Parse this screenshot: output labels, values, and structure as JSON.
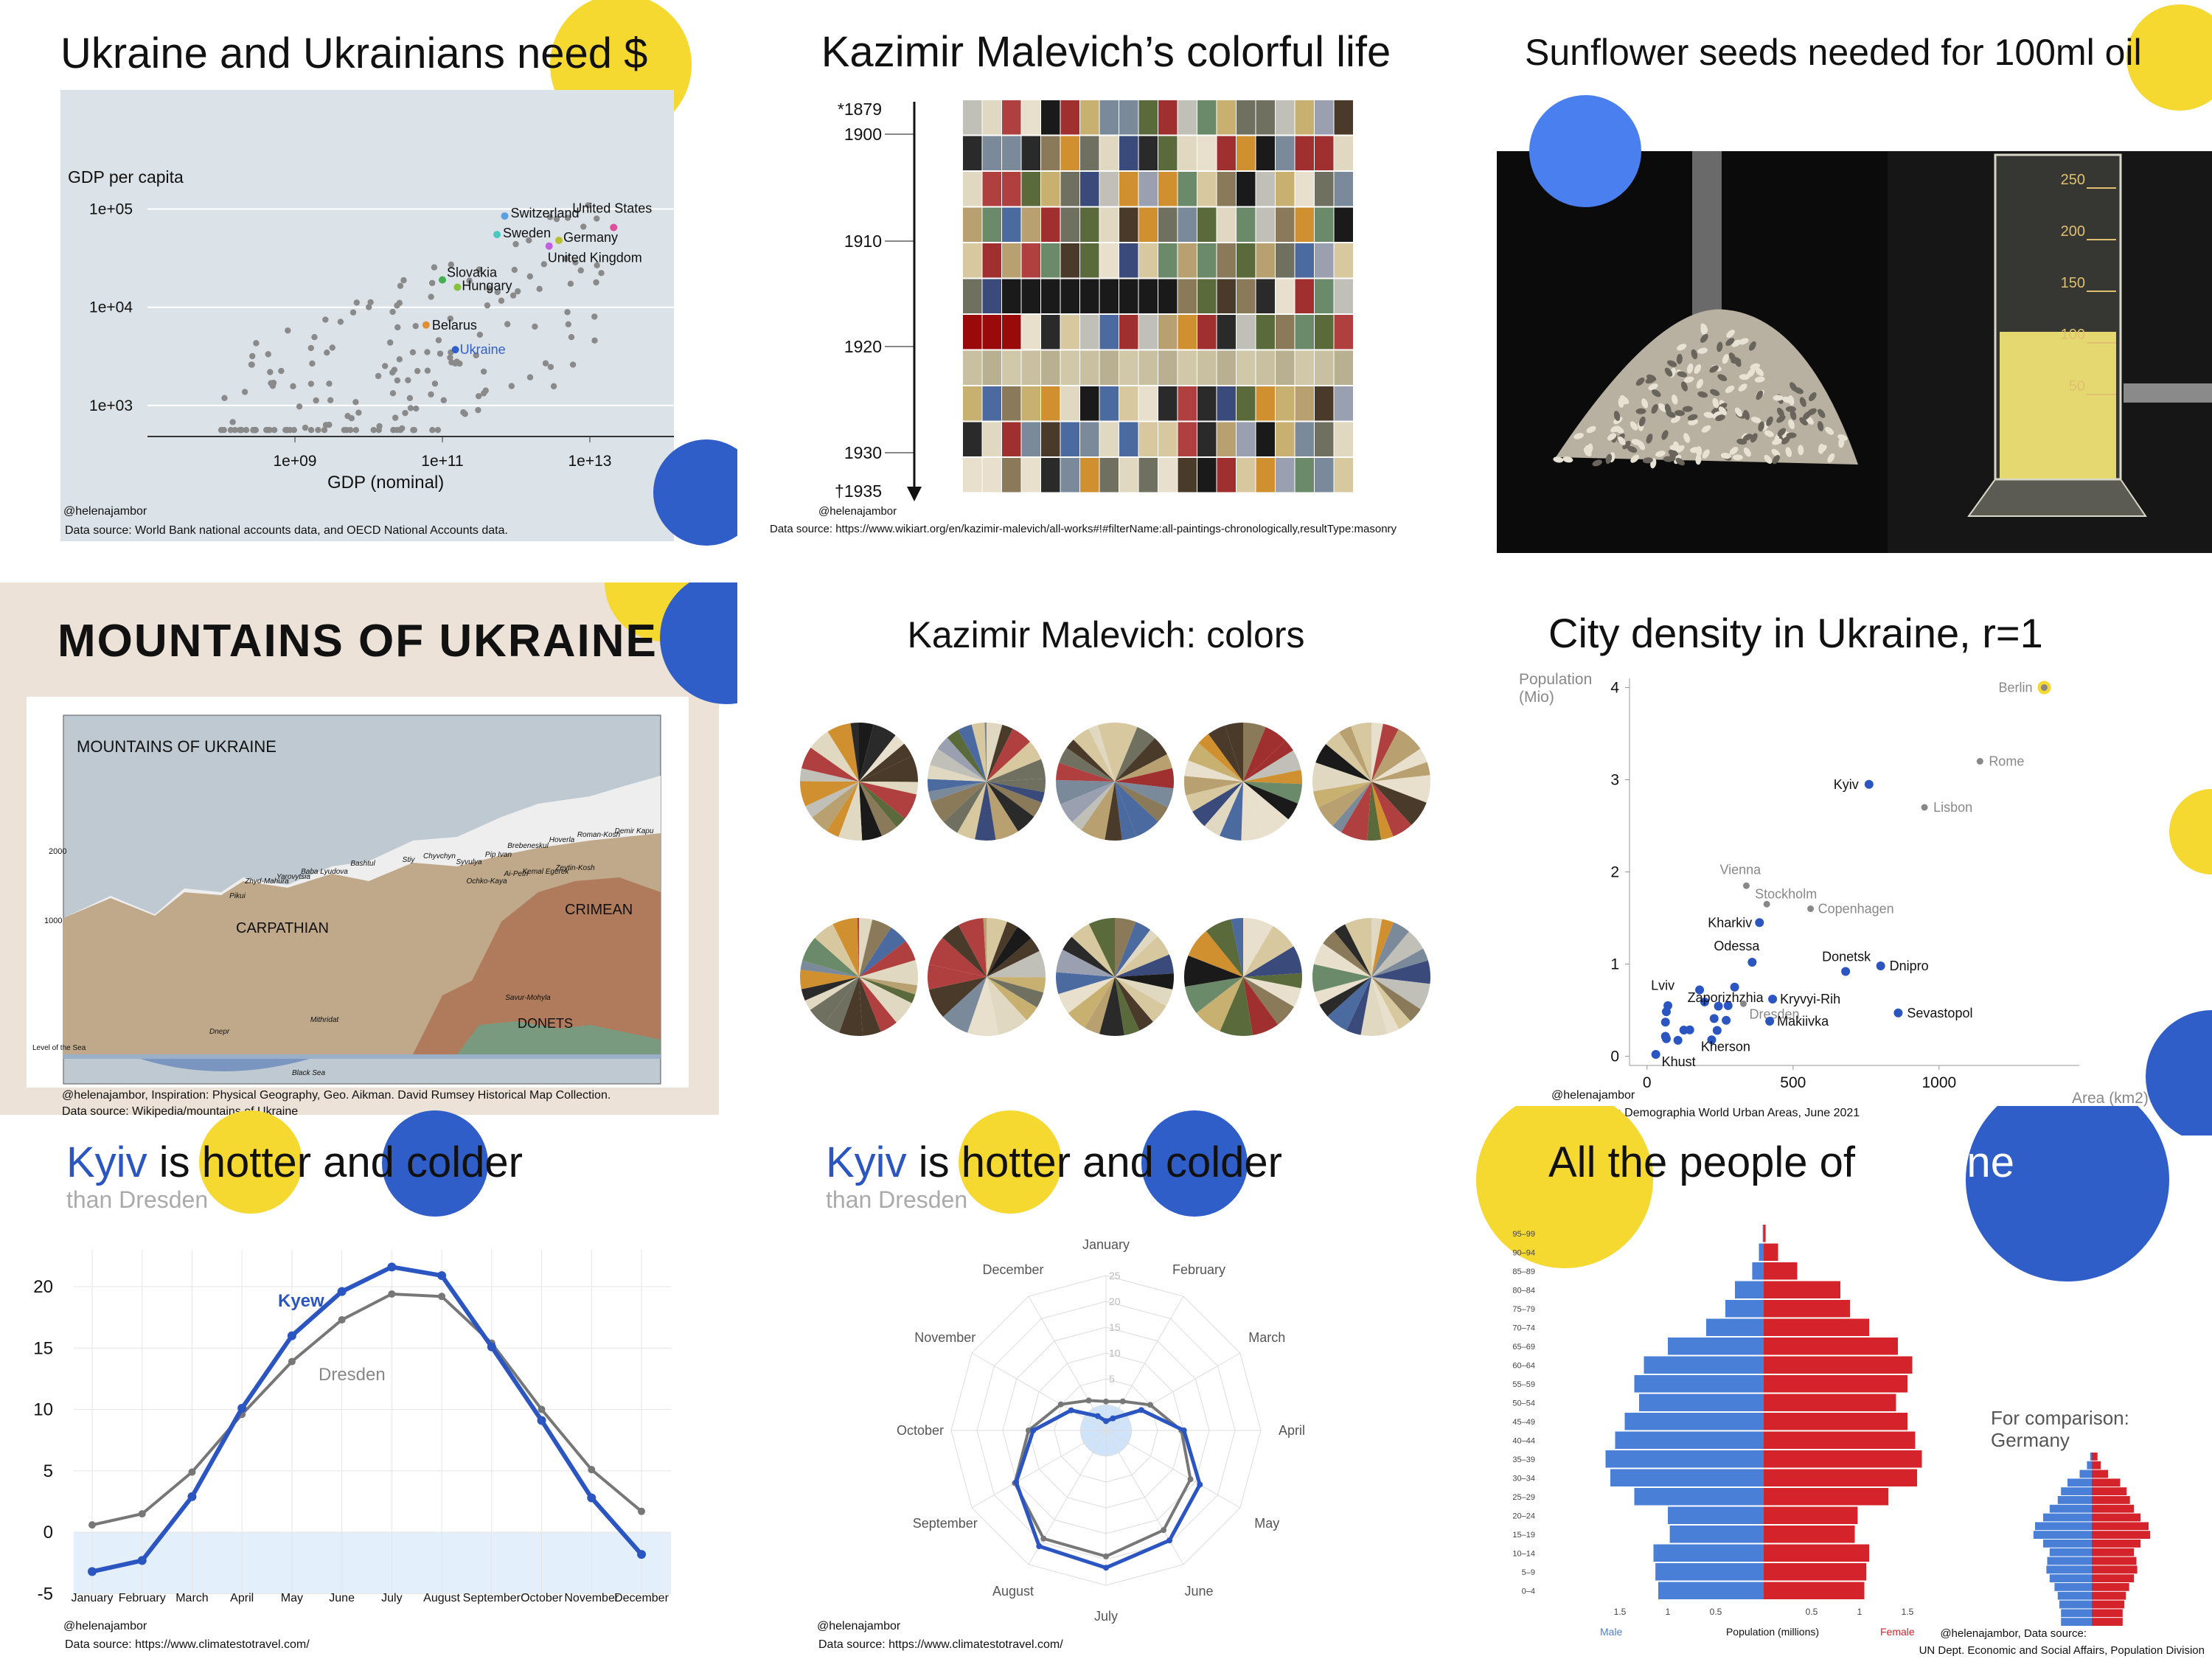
{
  "colors": {
    "yellow": "#f5d830",
    "blue": "#2f5ec8",
    "blue_light": "#4a7ff0",
    "grey_bg": "#dbe3e8",
    "kyiv": "#2b55c0",
    "dresden": "#777777",
    "male": "#4a7fd8",
    "female": "#d4232a"
  },
  "panel_gdp": {
    "title_a": "Ukraine and Ukrainians ",
    "title_b": "need $",
    "ylabel": "GDP per capita",
    "xlabel": "GDP (nominal)",
    "credit": "@helenajambor",
    "source": "Data source: World Bank national accounts data, and OECD National Accounts data.",
    "chart_data": {
      "type": "scatter",
      "log_x": true,
      "log_y": true,
      "xlim": [
        10000000.0,
        100000000000000.0
      ],
      "ylim": [
        500,
        300000
      ],
      "x_ticks": [
        "1e+09",
        "1e+11",
        "1e+13"
      ],
      "y_ticks": [
        "1e+03",
        "1e+04",
        "1e+05"
      ],
      "labeled_points": [
        {
          "label": "United States",
          "x": 21000000000000.0,
          "y": 65000,
          "color": "#e0509a"
        },
        {
          "label": "Switzerland",
          "x": 700000000000.0,
          "y": 85000,
          "color": "#5aa0e0"
        },
        {
          "label": "Sweden",
          "x": 550000000000.0,
          "y": 55000,
          "color": "#4cc8c0"
        },
        {
          "label": "Germany",
          "x": 3800000000000.0,
          "y": 48000,
          "color": "#b8c030"
        },
        {
          "label": "United Kingdom",
          "x": 2800000000000.0,
          "y": 42000,
          "color": "#c060e0"
        },
        {
          "label": "Slovakia",
          "x": 100000000000.0,
          "y": 19000,
          "color": "#40b050"
        },
        {
          "label": "Hungary",
          "x": 160000000000.0,
          "y": 16000,
          "color": "#88c040"
        },
        {
          "label": "Belarus",
          "x": 60000000000.0,
          "y": 6600,
          "color": "#e09030"
        },
        {
          "label": "Ukraine",
          "x": 150000000000.0,
          "y": 3700,
          "color": "#3060d0"
        }
      ]
    }
  },
  "panel_malevich_grid": {
    "title": "Kazimir Malevich’s colorful life",
    "years": [
      "*1879",
      "1900",
      "1910",
      "1920",
      "1930",
      "†1935"
    ],
    "credit": "@helenajambor",
    "source": "Data source: https://www.wikiart.org/en/kazimir-malevich/all-works#!#filterName:all-paintings-chronologically,resultType:masonry"
  },
  "panel_sunflower": {
    "title": "Sunflower seeds needed for 100ml oil",
    "cyl_marks": [
      "250",
      "200",
      "150",
      "100",
      "50"
    ]
  },
  "panel_mountains": {
    "title": "Mountains of Ukraine",
    "inner_title": "MOUNTAINS OF UKRAINE",
    "labels": {
      "carpathian": "CARPATHIAN",
      "crimean": "CRIMEAN",
      "donets": "DONETS",
      "sea_level": "Level of the Sea",
      "dnepr": "Dnepr",
      "black_sea": "Black Sea",
      "y2000": "2000",
      "y1000": "1000",
      "peaks": [
        "Pikui",
        "Zhyd-Mahura",
        "Yarovytsia",
        "Baba Lyudova",
        "Bashtul",
        "Stiy",
        "Chyvchyn",
        "Syvulya",
        "Pip Ivan",
        "Brebeneskul",
        "Hoverla",
        "Roman-Kosh",
        "Demir Kapu",
        "Zeytin-Kosh",
        "Kemal Egerek",
        "Ai-Petri",
        "Ochko-Kaya",
        "Savur-Mohyla",
        "Mithridat"
      ]
    },
    "credit": "@helenajambor, Inspiration: Physical Geography, Geo. Aikman. David Rumsey Historical Map Collection.",
    "source": "Data source: Wikipedia/mountains of Ukraine"
  },
  "panel_malevich_pies": {
    "title": "Kazimir Malevich: colors"
  },
  "panel_density": {
    "title": "City density in Ukraine, r=1",
    "ylabel_1": "Population",
    "ylabel_2": "(Mio)",
    "xlabel": "Area (km2)",
    "credit": "@helenajambor",
    "source": "Data source: Demographia World Urban Areas, June 2021",
    "chart_data": {
      "type": "scatter",
      "xlim": [
        -60,
        1480
      ],
      "ylim": [
        -0.1,
        4.1
      ],
      "x_ticks": [
        0,
        500,
        1000
      ],
      "y_ticks": [
        0,
        1,
        2,
        3,
        4
      ],
      "points": [
        {
          "label": "Berlin",
          "x": 1360,
          "y": 4.0,
          "group": "other"
        },
        {
          "label": "Rome",
          "x": 1140,
          "y": 3.2,
          "group": "other"
        },
        {
          "label": "Lisbon",
          "x": 950,
          "y": 2.7,
          "group": "other"
        },
        {
          "label": "Kyiv",
          "x": 760,
          "y": 2.95,
          "group": "ukraine"
        },
        {
          "label": "Vienna",
          "x": 340,
          "y": 1.85,
          "group": "other"
        },
        {
          "label": "Stockholm",
          "x": 410,
          "y": 1.65,
          "group": "other"
        },
        {
          "label": "Copenhagen",
          "x": 560,
          "y": 1.6,
          "group": "other"
        },
        {
          "label": "Kharkiv",
          "x": 385,
          "y": 1.45,
          "group": "ukraine"
        },
        {
          "label": "Odessa",
          "x": 360,
          "y": 1.02,
          "group": "ukraine"
        },
        {
          "label": "Donetsk",
          "x": 680,
          "y": 0.92,
          "group": "ukraine"
        },
        {
          "label": "Dnipro",
          "x": 800,
          "y": 0.98,
          "group": "ukraine"
        },
        {
          "label": "Zaporizhzhia",
          "x": 300,
          "y": 0.75,
          "group": "ukraine"
        },
        {
          "label": "Lviv",
          "x": 180,
          "y": 0.72,
          "group": "ukraine"
        },
        {
          "label": "Kryvyi-Rih",
          "x": 430,
          "y": 0.62,
          "group": "ukraine"
        },
        {
          "label": "Dresden",
          "x": 330,
          "y": 0.57,
          "group": "other"
        },
        {
          "label": "Sevastopol",
          "x": 860,
          "y": 0.47,
          "group": "ukraine"
        },
        {
          "label": "Makiivka",
          "x": 420,
          "y": 0.38,
          "group": "ukraine"
        },
        {
          "label": "Kherson",
          "x": 240,
          "y": 0.28,
          "group": "ukraine"
        },
        {
          "label": "Khust",
          "x": 30,
          "y": 0.02,
          "group": "ukraine"
        }
      ]
    }
  },
  "panel_line": {
    "title_a": "Kyiv",
    "title_b": " is hotter and colder",
    "subtitle": "than Dresden",
    "series_a": "Kyew",
    "series_b": "Dresden",
    "credit": "@helenajambor",
    "source": "Data source: https://www.climatestotravel.com/",
    "chart_data": {
      "type": "line",
      "categories": [
        "January",
        "February",
        "March",
        "April",
        "May",
        "June",
        "July",
        "August",
        "September",
        "October",
        "November",
        "December"
      ],
      "ylim": [
        -5,
        23
      ],
      "y_ticks": [
        -5,
        0,
        5,
        10,
        15,
        20
      ],
      "series": [
        {
          "name": "Kyew",
          "values": [
            -3.2,
            -2.3,
            2.9,
            10.1,
            16.0,
            19.6,
            21.6,
            20.9,
            15.1,
            9.1,
            2.8,
            -1.8
          ]
        },
        {
          "name": "Dresden",
          "values": [
            0.6,
            1.5,
            4.9,
            9.6,
            13.9,
            17.3,
            19.4,
            19.2,
            15.4,
            10.0,
            5.1,
            1.7
          ]
        }
      ]
    }
  },
  "panel_radar": {
    "title_a": "Kyiv",
    "title_b": " is hotter and colder",
    "subtitle": "than Dresden",
    "credit": "@helenajambor",
    "source": "Data source: https://www.climatestotravel.com/",
    "chart_data": {
      "type": "radar",
      "categories": [
        "January",
        "February",
        "March",
        "April",
        "May",
        "June",
        "July",
        "August",
        "September",
        "October",
        "November",
        "December"
      ],
      "rlim": [
        -5,
        25
      ],
      "r_ticks": [
        5,
        10,
        15,
        20,
        25
      ]
    }
  },
  "panel_pyramid": {
    "title_a": "All the people of ",
    "title_b": "Ukraine",
    "compare_1": "For comparison:",
    "compare_2": "Germany",
    "xlabel": "Population (millions)",
    "male": "Male",
    "female": "Female",
    "credit": "@helenajambor, Data source:",
    "source": "UN Dept. Economic and Social Affairs, Population Division",
    "chart_data": {
      "type": "bar",
      "orientation": "horizontal",
      "categories": [
        "0–4",
        "5–9",
        "10–14",
        "15–19",
        "20–24",
        "25–29",
        "30–34",
        "35–39",
        "40–44",
        "45–49",
        "50–54",
        "55–59",
        "60–64",
        "65–69",
        "70–74",
        "75–79",
        "80–84",
        "85–89",
        "90–94",
        "95–99"
      ],
      "x_ticks": [
        "1.5",
        "1",
        "0.5",
        "0.5",
        "1",
        "1.5"
      ],
      "series": [
        {
          "name": "Male",
          "values": [
            1.1,
            1.13,
            1.15,
            0.98,
            1.0,
            1.35,
            1.6,
            1.65,
            1.55,
            1.45,
            1.3,
            1.35,
            1.25,
            1.0,
            0.6,
            0.4,
            0.3,
            0.12,
            0.05,
            0.01
          ]
        },
        {
          "name": "Female",
          "values": [
            1.05,
            1.07,
            1.1,
            0.95,
            0.98,
            1.3,
            1.6,
            1.65,
            1.58,
            1.5,
            1.38,
            1.5,
            1.55,
            1.4,
            1.1,
            0.9,
            0.8,
            0.35,
            0.15,
            0.02
          ]
        }
      ]
    }
  }
}
